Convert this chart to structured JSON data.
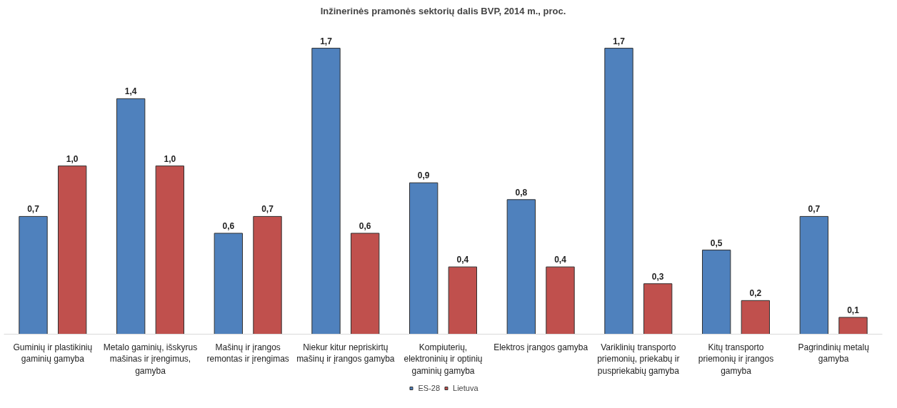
{
  "chart_data": {
    "type": "bar",
    "title": "Inžinerinės pramonės sektorių dalis BVP, 2014 m., proc.",
    "categories": [
      "Guminių ir plastikinių gaminių gamyba",
      "Metalo gaminių, išskyrus mašinas ir įrengimus, gamyba",
      "Mašinų ir įrangos remontas ir įrengimas",
      "Niekur kitur nepriskirtų mašinų ir įrangos gamyba",
      "Kompiuterių, elektroninių ir optinių gaminių gamyba",
      "Elektros įrangos gamyba",
      "Variklinių transporto priemonių, priekabų ir puspriekabių gamyba",
      "Kitų transporto priemonių ir įrangos gamyba",
      "Pagrindinių metalų gamyba"
    ],
    "series": [
      {
        "name": "ES-28",
        "color": "#4f81bd",
        "values": [
          0.7,
          1.4,
          0.6,
          1.7,
          0.9,
          0.8,
          1.7,
          0.5,
          0.7
        ],
        "value_labels": [
          "0,7",
          "1,4",
          "0,6",
          "1,7",
          "0,9",
          "0,8",
          "1,7",
          "0,5",
          "0,7"
        ]
      },
      {
        "name": "Lietuva",
        "color": "#c0504d",
        "values": [
          1.0,
          1.0,
          0.7,
          0.6,
          0.4,
          0.4,
          0.3,
          0.2,
          0.1
        ],
        "value_labels": [
          "1,0",
          "1,0",
          "0,7",
          "0,6",
          "0,4",
          "0,4",
          "0,3",
          "0,2",
          "0,1"
        ]
      }
    ],
    "legend": "bottom",
    "grid": false
  }
}
